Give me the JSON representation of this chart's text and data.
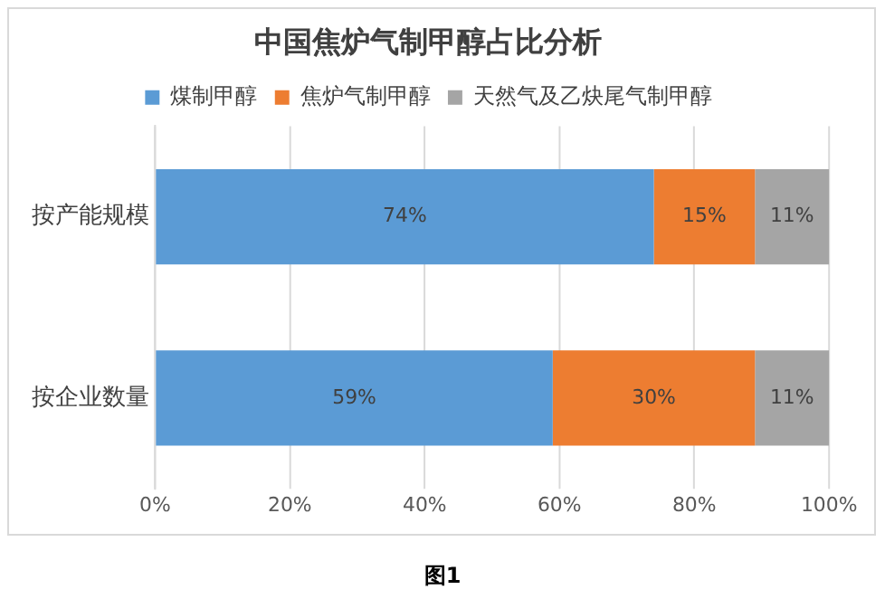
{
  "chart_data": {
    "type": "bar",
    "orientation": "horizontal",
    "stacked": true,
    "title": "中国焦炉气制甲醇占比分析",
    "categories": [
      "按产能规模",
      "按企业数量"
    ],
    "series": [
      {
        "name": "煤制甲醇",
        "color": "#5b9bd5",
        "values": [
          74,
          59
        ],
        "value_labels": [
          "74%",
          "59%"
        ]
      },
      {
        "name": "焦炉气制甲醇",
        "color": "#ed7d31",
        "values": [
          15,
          30
        ],
        "value_labels": [
          "15%",
          "30%"
        ]
      },
      {
        "name": "天然气及乙炔尾气制甲醇",
        "color": "#a5a5a5",
        "values": [
          11,
          11
        ],
        "value_labels": [
          "11%",
          "11%"
        ]
      }
    ],
    "xlim": [
      0,
      100
    ],
    "xticks": [
      {
        "value": 0,
        "label": "0%"
      },
      {
        "value": 20,
        "label": "20%"
      },
      {
        "value": 40,
        "label": "40%"
      },
      {
        "value": 60,
        "label": "60%"
      },
      {
        "value": 80,
        "label": "80%"
      },
      {
        "value": 100,
        "label": "100%"
      }
    ],
    "grid": "x",
    "legend": "top",
    "annotations": [
      "图1"
    ]
  }
}
